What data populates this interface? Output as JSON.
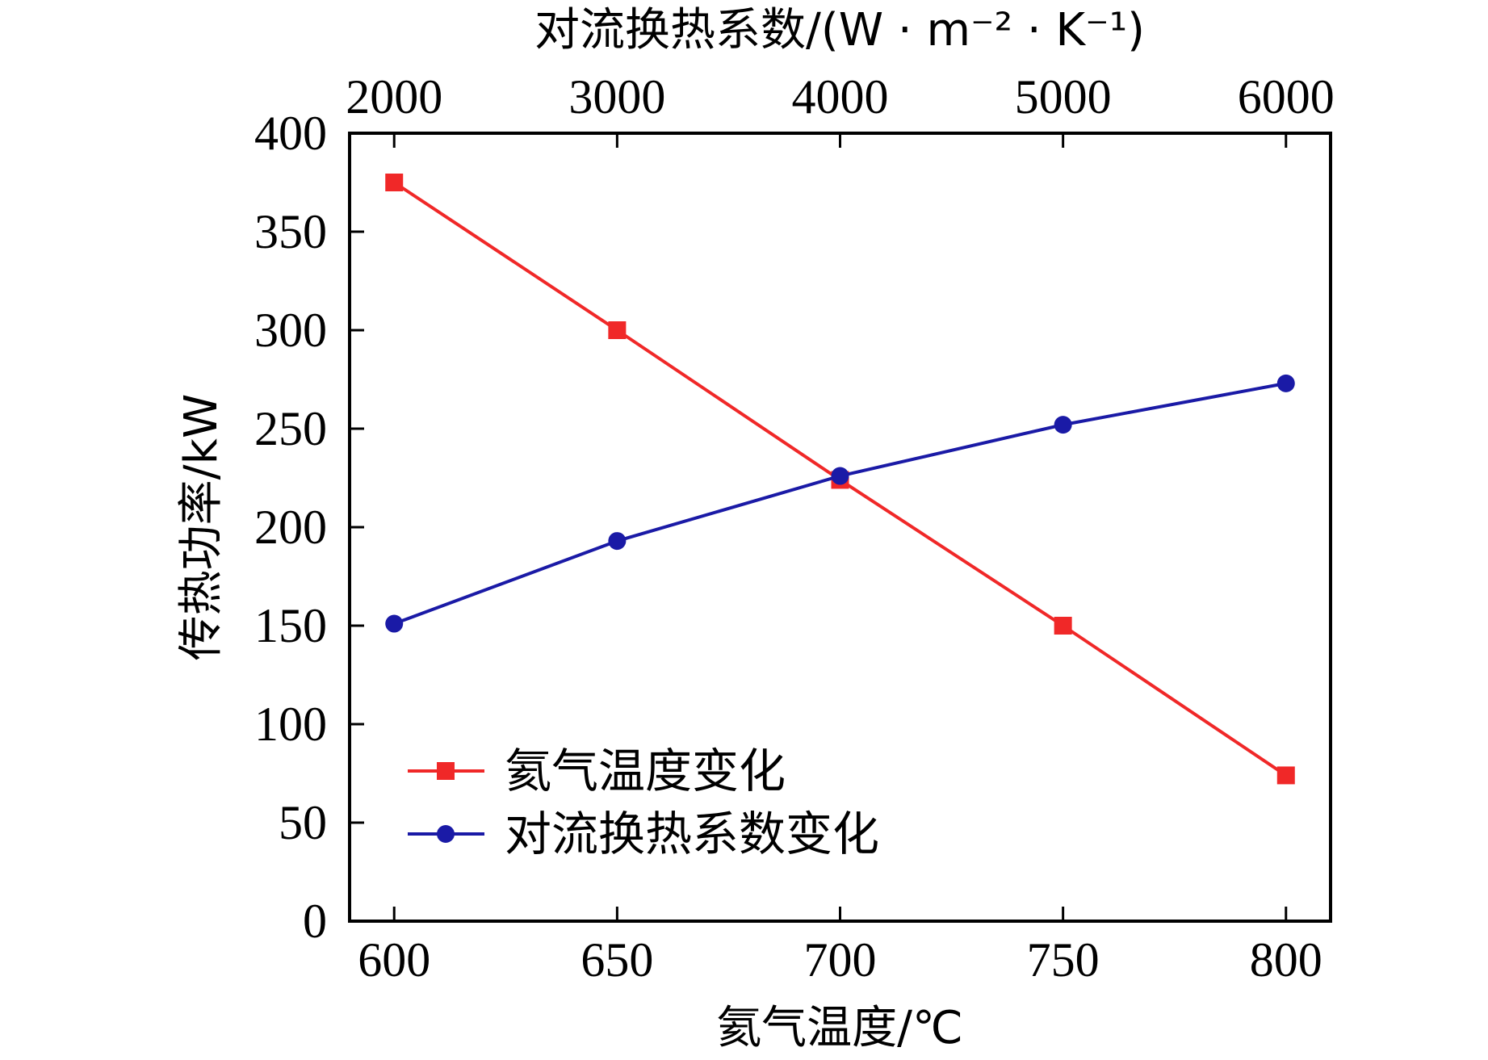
{
  "chart_data": {
    "type": "line",
    "xlabel": "氦气温度/℃",
    "x2label": "对流换热系数/(W · m⁻² · K⁻¹)",
    "ylabel": "传热功率/kW",
    "xlim": [
      590,
      810
    ],
    "x2lim": [
      1800,
      6200
    ],
    "ylim": [
      0,
      400
    ],
    "x_ticks": [
      600,
      650,
      700,
      750,
      800
    ],
    "x2_ticks": [
      2000,
      3000,
      4000,
      5000,
      6000
    ],
    "y_ticks": [
      0,
      50,
      100,
      150,
      200,
      250,
      300,
      350,
      400
    ],
    "legend_position": "lower-left",
    "grid": false,
    "series": [
      {
        "name": "氦气温度变化",
        "axis": "bottom",
        "color": "#f02828",
        "marker": "square",
        "x": [
          600,
          650,
          700,
          750,
          800
        ],
        "y": [
          375,
          300,
          224,
          150,
          74
        ]
      },
      {
        "name": "对流换热系数变化",
        "axis": "top",
        "color": "#1a1aa6",
        "marker": "circle",
        "x": [
          2000,
          3000,
          4000,
          5000,
          6000
        ],
        "y": [
          151,
          193,
          226,
          252,
          273
        ]
      }
    ]
  }
}
